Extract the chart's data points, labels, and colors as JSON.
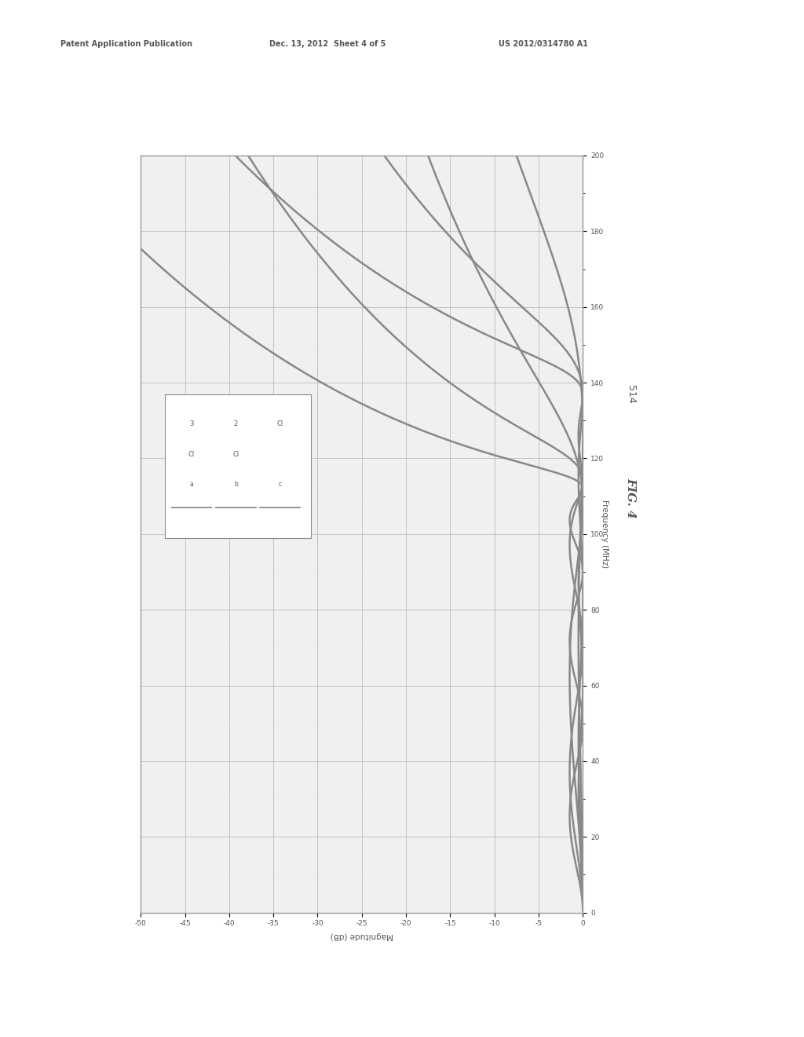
{
  "page_header_left": "Patent Application Publication",
  "page_header_mid": "Dec. 13, 2012  Sheet 4 of 5",
  "page_header_right": "US 2012/0314780 A1",
  "figure_label": "FIG. 4",
  "fig_num": "514",
  "background_color": "#ffffff",
  "plot_bg_color": "#f0f0f0",
  "grid_major_color": "#bbbbbb",
  "grid_minor_color": "#d8d8d8",
  "curve_color": "#888888",
  "border_color": "#999999",
  "freq_min": 0,
  "freq_max": 200,
  "mag_min": -50,
  "mag_max": 0,
  "xlabel_rotated": "Magnitude (dB)",
  "ylabel_rotated": "Frequency (MHz)",
  "freq_ticks": [
    0,
    20,
    40,
    60,
    80,
    100,
    120,
    140,
    160,
    180,
    200
  ],
  "mag_ticks": [
    -50,
    -45,
    -40,
    -35,
    -30,
    -25,
    -20,
    -15,
    -10,
    -5,
    0
  ],
  "upper_curves": {
    "cutoffs": [
      140,
      143,
      146
    ],
    "orders": [
      7,
      5,
      3
    ],
    "ripple_db": 0.5
  },
  "lower_curves": {
    "cutoffs": [
      115,
      120,
      125
    ],
    "orders": [
      7,
      5,
      3
    ],
    "ripple_db": 1.5
  }
}
